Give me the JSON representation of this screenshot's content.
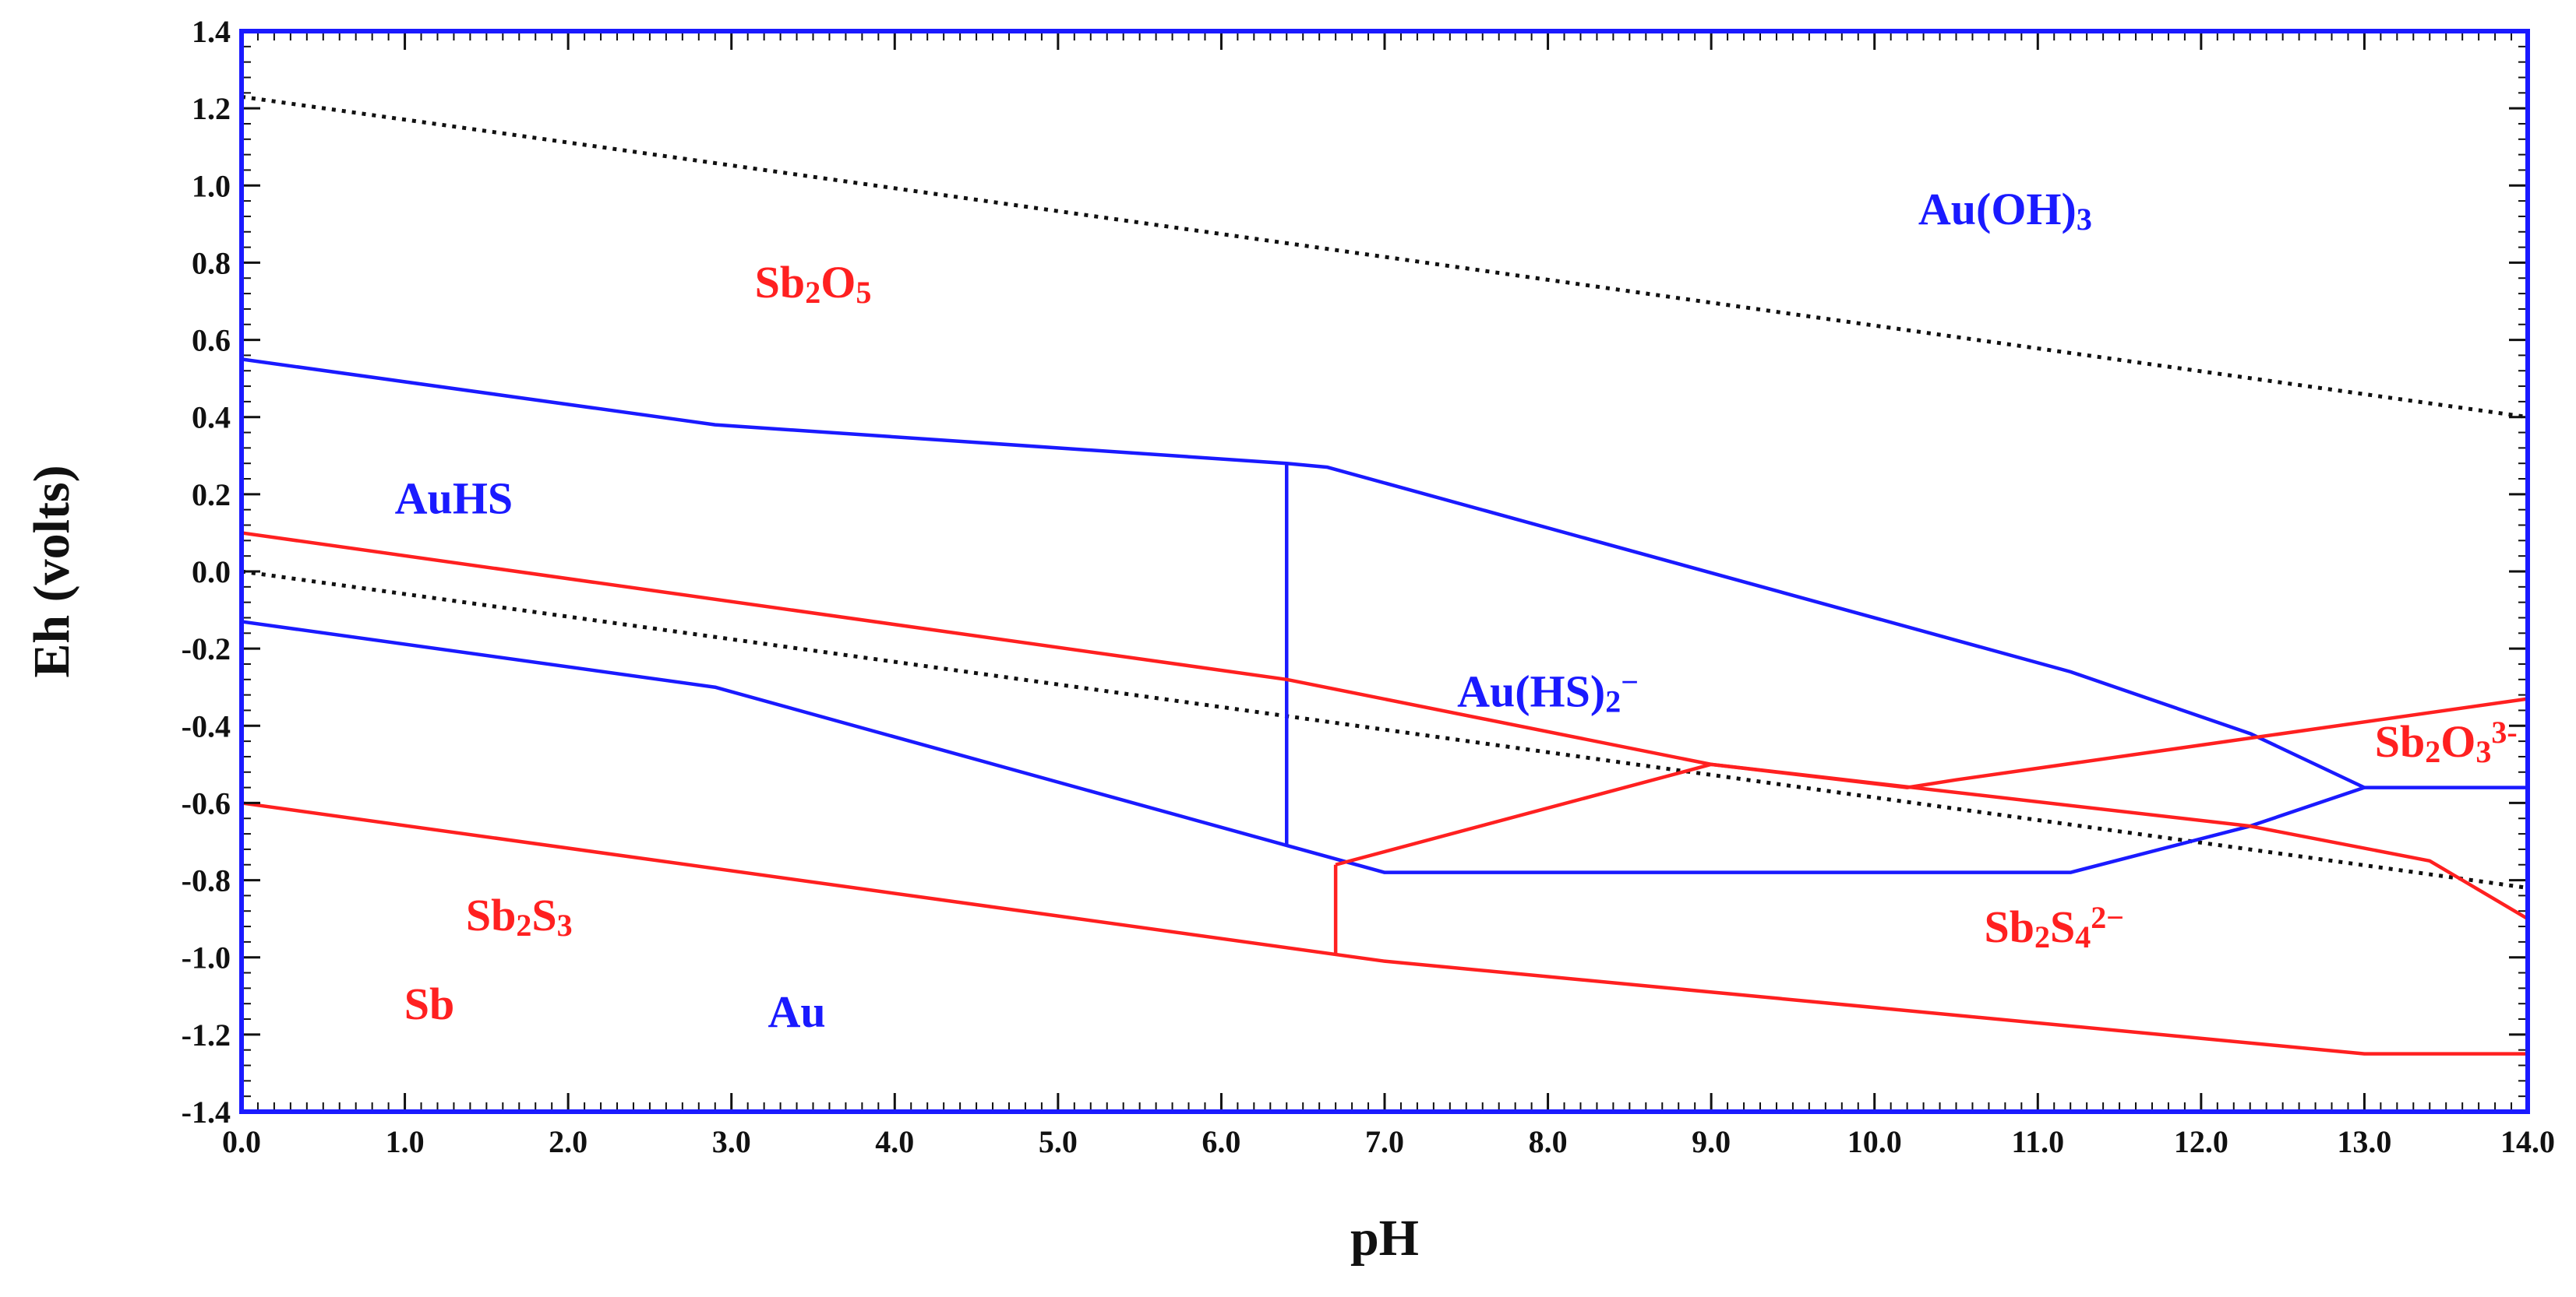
{
  "chart_data": {
    "type": "line",
    "title": "",
    "xlabel": "pH",
    "ylabel": "Eh (volts)",
    "xlim": [
      0,
      14
    ],
    "ylim": [
      -1.4,
      1.4
    ],
    "x_ticks": [
      "0.0",
      "1.0",
      "2.0",
      "3.0",
      "4.0",
      "5.0",
      "6.0",
      "7.0",
      "8.0",
      "9.0",
      "10.0",
      "11.0",
      "12.0",
      "13.0",
      "14.0"
    ],
    "y_ticks": [
      "1.4",
      "1.2",
      "1.0",
      "0.8",
      "0.6",
      "0.4",
      "0.2",
      "0.0",
      "-0.2",
      "-0.4",
      "-0.6",
      "-0.8",
      "-1.0",
      "-1.2",
      "-1.4"
    ],
    "grid": false,
    "colors": {
      "gold_system": "#1a1aff",
      "antimony_system": "#ff2020",
      "water_limits": "#111111",
      "frame": "#1a1aff"
    },
    "water_stability_lines": [
      {
        "style": "dotted",
        "points": [
          [
            0,
            1.23
          ],
          [
            14,
            0.4
          ]
        ]
      },
      {
        "style": "dotted",
        "points": [
          [
            0,
            0.0
          ],
          [
            14,
            -0.82
          ]
        ]
      }
    ],
    "series": [
      {
        "color": "blue",
        "points": [
          [
            0,
            0.55
          ],
          [
            2.9,
            0.38
          ],
          [
            6.4,
            0.28
          ],
          [
            6.65,
            0.27
          ],
          [
            11.2,
            -0.26
          ],
          [
            12.3,
            -0.42
          ],
          [
            13.0,
            -0.56
          ],
          [
            14.0,
            -0.56
          ]
        ]
      },
      {
        "color": "blue",
        "points": [
          [
            6.4,
            0.28
          ],
          [
            6.4,
            -0.71
          ]
        ]
      },
      {
        "color": "blue",
        "points": [
          [
            0,
            -0.13
          ],
          [
            2.9,
            -0.3
          ],
          [
            6.4,
            -0.71
          ],
          [
            7.0,
            -0.78
          ],
          [
            11.2,
            -0.78
          ],
          [
            12.3,
            -0.66
          ],
          [
            13.0,
            -0.56
          ]
        ]
      },
      {
        "color": "red",
        "points": [
          [
            0,
            0.1
          ],
          [
            6.4,
            -0.28
          ],
          [
            9.0,
            -0.5
          ],
          [
            12.3,
            -0.66
          ],
          [
            13.4,
            -0.75
          ],
          [
            14.0,
            -0.9
          ]
        ]
      },
      {
        "color": "red",
        "points": [
          [
            6.7,
            -0.76
          ],
          [
            9.0,
            -0.5
          ],
          [
            10.2,
            -0.56
          ],
          [
            10.5,
            -0.54
          ],
          [
            14.0,
            -0.33
          ]
        ]
      },
      {
        "color": "red",
        "points": [
          [
            6.7,
            -0.76
          ],
          [
            6.7,
            -0.99
          ]
        ]
      },
      {
        "color": "red",
        "points": [
          [
            0,
            -0.6
          ],
          [
            7.0,
            -1.01
          ],
          [
            13.0,
            -1.25
          ],
          [
            14.0,
            -1.25
          ]
        ]
      }
    ],
    "annotations": [
      {
        "x": 10.8,
        "y": 0.9,
        "color": "blue",
        "parts": [
          [
            "Au(OH)",
            ""
          ],
          [
            "3",
            "sub"
          ]
        ]
      },
      {
        "x": 3.5,
        "y": 0.71,
        "color": "red",
        "parts": [
          [
            "Sb",
            ""
          ],
          [
            "2",
            "sub"
          ],
          [
            "O",
            ""
          ],
          [
            "5",
            "sub"
          ]
        ]
      },
      {
        "x": 1.3,
        "y": 0.15,
        "color": "blue",
        "parts": [
          [
            "AuHS",
            ""
          ]
        ]
      },
      {
        "x": 8.0,
        "y": -0.35,
        "color": "blue",
        "parts": [
          [
            "Au(HS)",
            ""
          ],
          [
            "2",
            "sub"
          ],
          [
            "−",
            "sup"
          ]
        ]
      },
      {
        "x": 1.7,
        "y": -0.93,
        "color": "red",
        "parts": [
          [
            "Sb",
            ""
          ],
          [
            "2",
            "sub"
          ],
          [
            "S",
            ""
          ],
          [
            "3",
            "sub"
          ]
        ]
      },
      {
        "x": 13.5,
        "y": -0.48,
        "color": "red",
        "parts": [
          [
            "Sb",
            ""
          ],
          [
            "2",
            "sub"
          ],
          [
            "O",
            ""
          ],
          [
            "3",
            "sub"
          ],
          [
            "3-",
            "sup"
          ]
        ]
      },
      {
        "x": 11.1,
        "y": -0.96,
        "color": "red",
        "parts": [
          [
            "Sb",
            ""
          ],
          [
            "2",
            "sub"
          ],
          [
            "S",
            ""
          ],
          [
            "4",
            "sub"
          ],
          [
            "2−",
            "sup"
          ]
        ]
      },
      {
        "x": 1.15,
        "y": -1.16,
        "color": "red",
        "parts": [
          [
            "Sb",
            ""
          ]
        ]
      },
      {
        "x": 3.4,
        "y": -1.18,
        "color": "blue",
        "parts": [
          [
            "Au",
            ""
          ]
        ]
      }
    ]
  }
}
